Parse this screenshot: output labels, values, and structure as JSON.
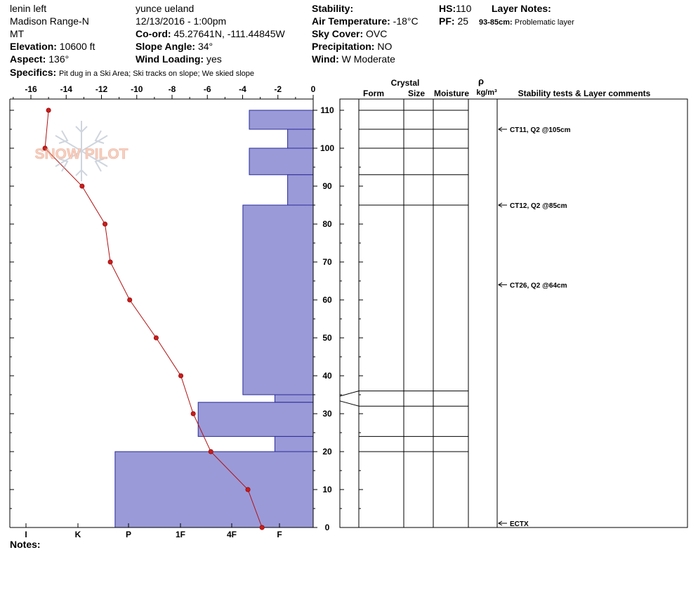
{
  "header": {
    "location": "lenin left",
    "range": "Madison Range-N",
    "state": "MT",
    "elevation_label": "Elevation:",
    "elevation": "10600 ft",
    "aspect_label": "Aspect:",
    "aspect": "136°",
    "observer": "yunce ueland",
    "datetime": "12/13/2016 - 1:00pm",
    "coord_label": "Co-ord:",
    "coord": "45.27641N, -111.44845W",
    "slope_label": "Slope Angle:",
    "slope": "34°",
    "wind_loading_label": "Wind Loading:",
    "wind_loading": "yes",
    "stability_label": "Stability:",
    "stability": "",
    "air_temp_label": "Air Temperature:",
    "air_temp": "-18°C",
    "sky_label": "Sky Cover:",
    "sky": "OVC",
    "precip_label": "Precipitation:",
    "precip": "NO",
    "wind_label": "Wind:",
    "wind": "W Moderate",
    "hs_label": "HS:",
    "hs": "110",
    "pf_label": "PF:",
    "pf": "25",
    "layer_notes_label": "Layer Notes:",
    "layer_note_range": "93-85cm:",
    "layer_note_text": "Problematic layer",
    "specifics_label": "Specifics:",
    "specifics": "Pit dug in a Ski Area; Ski tracks on slope; We skied slope",
    "notes_label": "Notes:"
  },
  "logo": {
    "text": "SNOW PILOT"
  },
  "right_headers": {
    "crystal": "Crystal",
    "form": "Form",
    "size": "Size",
    "moisture": "Moisture",
    "rho": "ρ",
    "density_unit": "kg/m³",
    "stability_tests": "Stability tests & Layer comments"
  },
  "chart_data": {
    "type": "snow-profile",
    "temp_axis": {
      "ticks": [
        -16,
        -14,
        -12,
        -10,
        -8,
        -6,
        -4,
        -2,
        0
      ],
      "range": [
        -17,
        0
      ]
    },
    "height_axis": {
      "ticks": [
        0,
        10,
        20,
        30,
        40,
        50,
        60,
        70,
        80,
        90,
        100,
        110
      ],
      "range": [
        0,
        110
      ]
    },
    "hardness_axis": {
      "labels": [
        "I",
        "K",
        "P",
        "1F",
        "4F",
        "F"
      ]
    },
    "temperature_profile": [
      {
        "h": 110,
        "t": -15.0
      },
      {
        "h": 100,
        "t": -15.2
      },
      {
        "h": 90,
        "t": -13.1
      },
      {
        "h": 80,
        "t": -11.8
      },
      {
        "h": 70,
        "t": -11.5
      },
      {
        "h": 60,
        "t": -10.4
      },
      {
        "h": 50,
        "t": -8.9
      },
      {
        "h": 40,
        "t": -7.5
      },
      {
        "h": 30,
        "t": -6.8
      },
      {
        "h": 20,
        "t": -5.8
      },
      {
        "h": 10,
        "t": -3.7
      },
      {
        "h": 0,
        "t": -2.9
      }
    ],
    "layers": [
      {
        "top": 110,
        "bottom": 105,
        "hardness": 1
      },
      {
        "top": 105,
        "bottom": 100,
        "hardness": 0.4
      },
      {
        "top": 100,
        "bottom": 93,
        "hardness": 1
      },
      {
        "top": 93,
        "bottom": 85,
        "hardness": 0.4
      },
      {
        "top": 85,
        "bottom": 35,
        "hardness": 1.1
      },
      {
        "top": 35,
        "bottom": 33,
        "hardness": 0.6
      },
      {
        "top": 33,
        "bottom": 24,
        "hardness": 1.8
      },
      {
        "top": 24,
        "bottom": 20,
        "hardness": 0.6
      },
      {
        "top": 20,
        "bottom": 0,
        "hardness": 3.1
      }
    ],
    "layer_boundaries": [
      110,
      105,
      100,
      93,
      85,
      36,
      32,
      24,
      20
    ],
    "tests": [
      {
        "h": 105,
        "label": "CT11, Q2 @105cm"
      },
      {
        "h": 85,
        "label": "CT12, Q2 @85cm"
      },
      {
        "h": 64,
        "label": "CT26, Q2 @64cm"
      },
      {
        "h": 0,
        "label": "ECTX"
      }
    ]
  }
}
